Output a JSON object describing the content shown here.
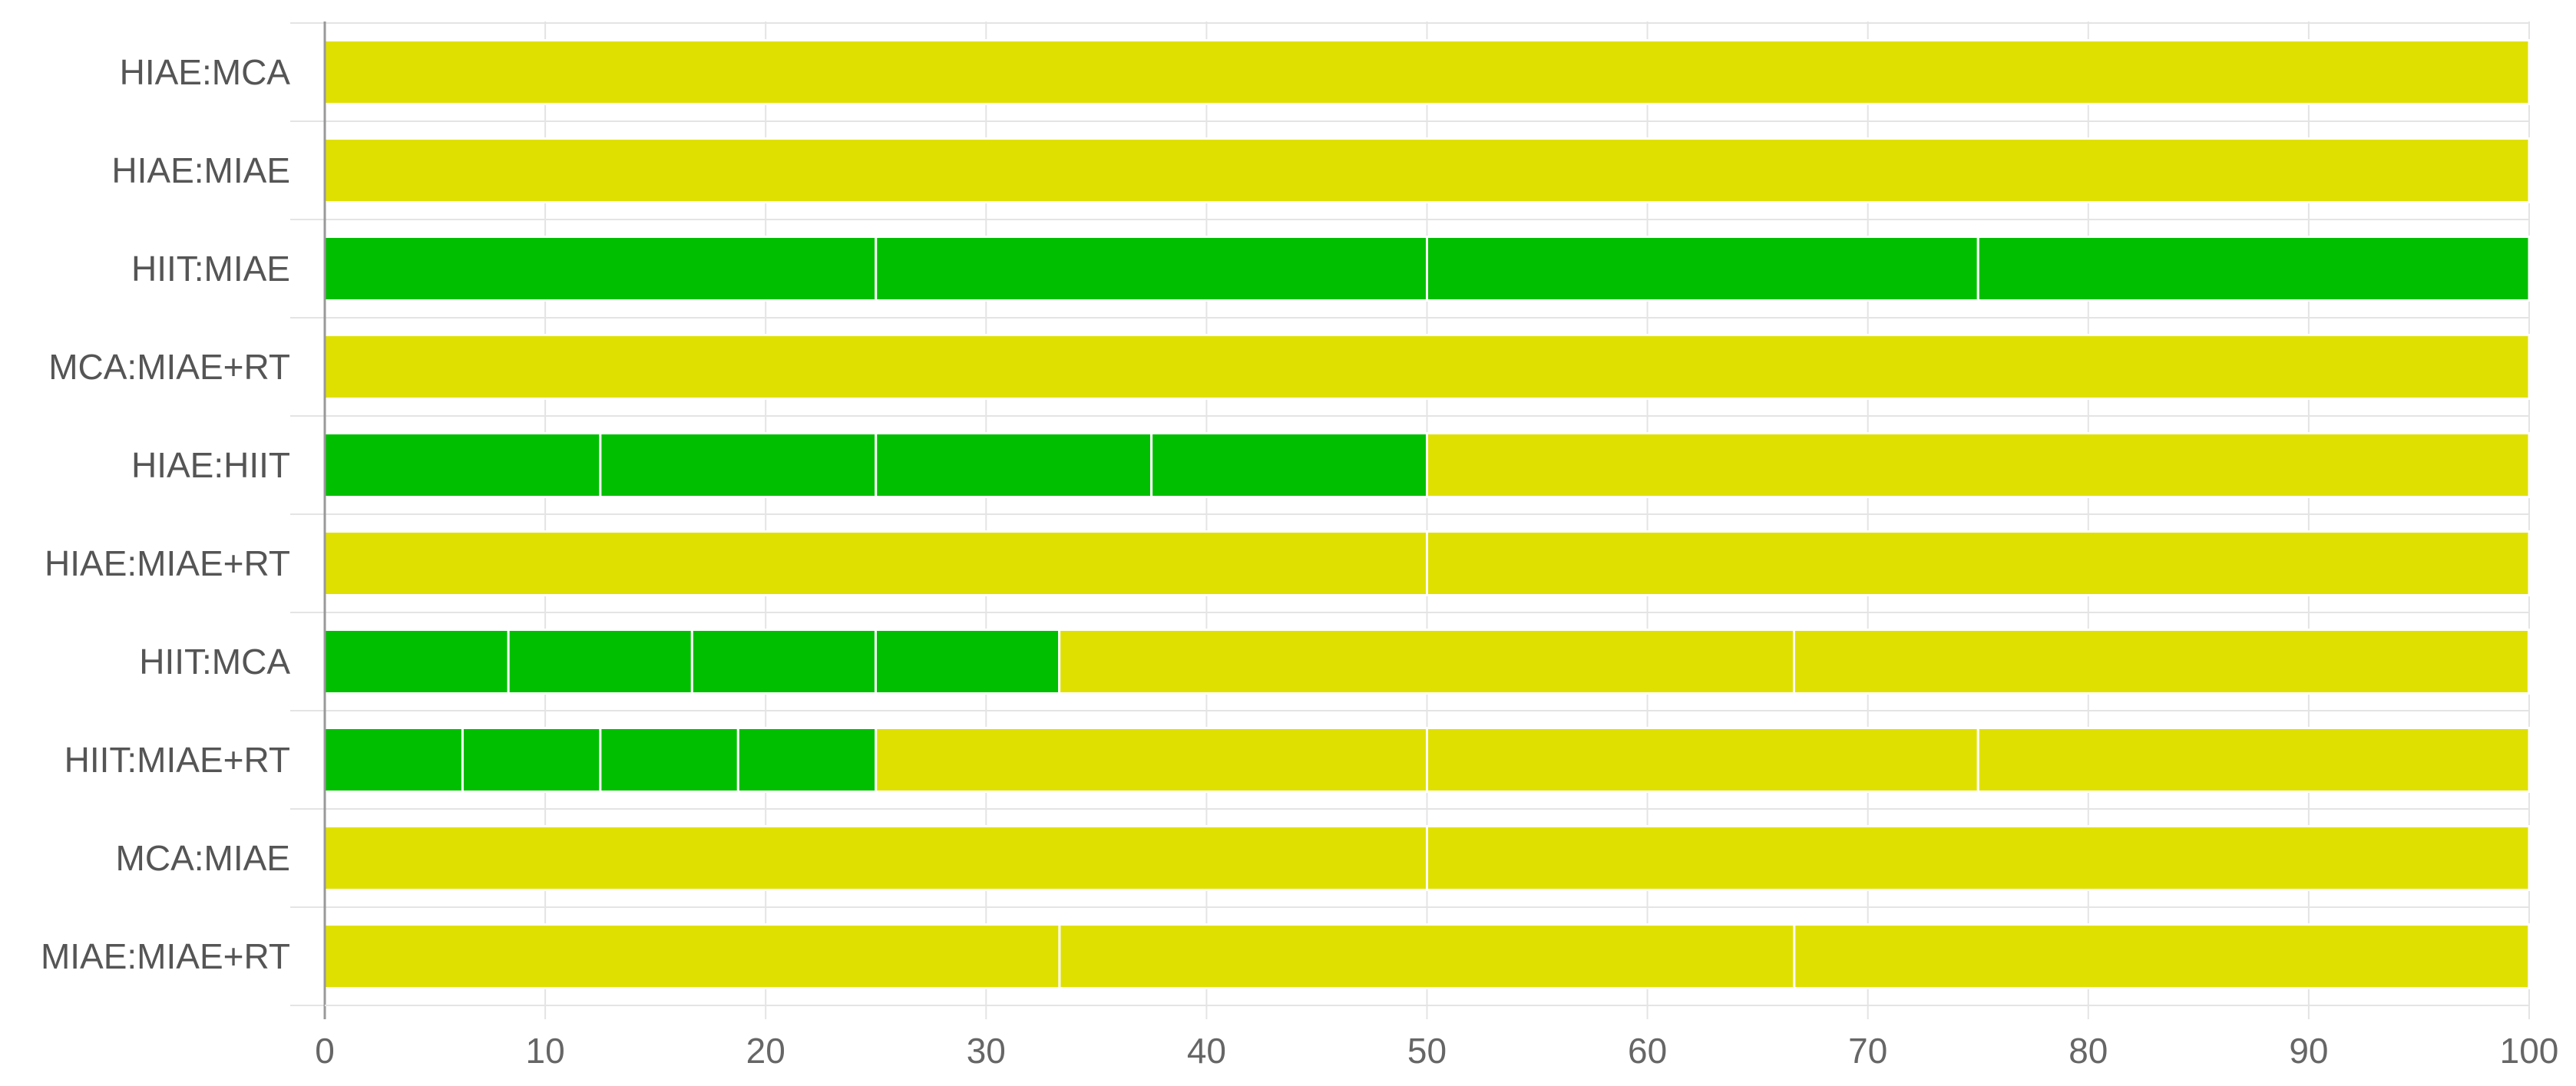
{
  "chart_data": {
    "type": "bar",
    "orientation": "horizontal",
    "stacked": true,
    "categories": [
      "HIAE:MCA",
      "HIAE:MIAE",
      "HIIT:MIAE",
      "MCA:MIAE+RT",
      "HIAE:HIIT",
      "HIAE:MIAE+RT",
      "HIIT:MCA",
      "HIIT:MIAE+RT",
      "MCA:MIAE",
      "MIAE:MIAE+RT"
    ],
    "segments": [
      [
        {
          "value": 100,
          "color": "yellow"
        }
      ],
      [
        {
          "value": 100,
          "color": "yellow"
        }
      ],
      [
        {
          "value": 25,
          "color": "green"
        },
        {
          "value": 25,
          "color": "green"
        },
        {
          "value": 25,
          "color": "green"
        },
        {
          "value": 25,
          "color": "green"
        }
      ],
      [
        {
          "value": 100,
          "color": "yellow"
        }
      ],
      [
        {
          "value": 12.5,
          "color": "green"
        },
        {
          "value": 12.5,
          "color": "green"
        },
        {
          "value": 12.5,
          "color": "green"
        },
        {
          "value": 12.5,
          "color": "green"
        },
        {
          "value": 50,
          "color": "yellow"
        }
      ],
      [
        {
          "value": 50,
          "color": "yellow"
        },
        {
          "value": 50,
          "color": "yellow"
        }
      ],
      [
        {
          "value": 8.33,
          "color": "green"
        },
        {
          "value": 8.33,
          "color": "green"
        },
        {
          "value": 8.33,
          "color": "green"
        },
        {
          "value": 8.33,
          "color": "green"
        },
        {
          "value": 33.33,
          "color": "yellow"
        },
        {
          "value": 33.33,
          "color": "yellow"
        }
      ],
      [
        {
          "value": 6.25,
          "color": "green"
        },
        {
          "value": 6.25,
          "color": "green"
        },
        {
          "value": 6.25,
          "color": "green"
        },
        {
          "value": 6.25,
          "color": "green"
        },
        {
          "value": 25,
          "color": "yellow"
        },
        {
          "value": 25,
          "color": "yellow"
        },
        {
          "value": 25,
          "color": "yellow"
        }
      ],
      [
        {
          "value": 50,
          "color": "yellow"
        },
        {
          "value": 50,
          "color": "yellow"
        }
      ],
      [
        {
          "value": 33.33,
          "color": "yellow"
        },
        {
          "value": 33.33,
          "color": "yellow"
        },
        {
          "value": 33.33,
          "color": "yellow"
        }
      ]
    ],
    "xlim": [
      0,
      100
    ],
    "xticks": [
      0,
      10,
      20,
      30,
      40,
      50,
      60,
      70,
      80,
      90,
      100
    ],
    "title": "",
    "xlabel": "",
    "ylabel": "",
    "grid": true,
    "legend": "none",
    "colors": {
      "green": "#00bf00",
      "yellow": "#e0e000",
      "grid": "#e4e4e4",
      "axis": "#999999",
      "text": "#555555"
    }
  }
}
